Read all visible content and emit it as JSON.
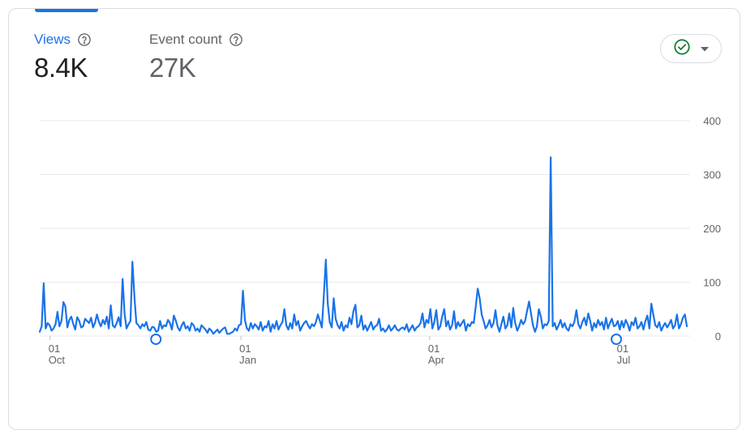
{
  "metrics": [
    {
      "label": "Views",
      "value": "8.4K",
      "help_icon": "help-circle-icon"
    },
    {
      "label": "Event count",
      "value": "27K",
      "help_icon": "help-circle-icon"
    }
  ],
  "status_chip": {
    "icon": "check-circle-icon",
    "dropdown_icon": "caret-down-icon"
  },
  "colors": {
    "accent": "#1a73e8",
    "check_green": "#188038",
    "grid": "#e8eaed",
    "text_muted": "#5f6368"
  },
  "chart_data": {
    "type": "line",
    "x_start": "2023-09-26",
    "x_end": "2024-08-03",
    "x_ticks": [
      {
        "date": "2023-10-01",
        "day": "01",
        "month": "Oct"
      },
      {
        "date": "2024-01-01",
        "day": "01",
        "month": "Jan"
      },
      {
        "date": "2024-04-01",
        "day": "01",
        "month": "Apr"
      },
      {
        "date": "2024-07-01",
        "day": "01",
        "month": "Jul"
      }
    ],
    "y_ticks": [
      0,
      100,
      200,
      300,
      400
    ],
    "ylim": [
      0,
      400
    ],
    "y_axis_position": "right",
    "grid": true,
    "series": [
      {
        "values": [
          8,
          18,
          98,
          14,
          24,
          20,
          10,
          14,
          22,
          45,
          18,
          28,
          63,
          55,
          16,
          30,
          36,
          22,
          12,
          35,
          28,
          16,
          18,
          32,
          28,
          24,
          34,
          16,
          24,
          40,
          26,
          18,
          30,
          22,
          36,
          14,
          57,
          20,
          16,
          24,
          35,
          18,
          106,
          42,
          14,
          22,
          28,
          138,
          72,
          24,
          20,
          14,
          22,
          18,
          26,
          12,
          10,
          17,
          16,
          8,
          10,
          28,
          14,
          20,
          18,
          30,
          24,
          12,
          38,
          28,
          16,
          10,
          20,
          26,
          14,
          18,
          10,
          24,
          20,
          10,
          14,
          8,
          20,
          16,
          12,
          6,
          14,
          10,
          4,
          8,
          12,
          6,
          10,
          14,
          16,
          4,
          4,
          6,
          8,
          14,
          10,
          20,
          22,
          84,
          30,
          14,
          10,
          24,
          14,
          22,
          18,
          12,
          26,
          10,
          18,
          16,
          28,
          8,
          22,
          14,
          28,
          12,
          20,
          26,
          50,
          20,
          12,
          24,
          14,
          40,
          20,
          28,
          10,
          18,
          24,
          28,
          20,
          14,
          22,
          18,
          26,
          40,
          28,
          16,
          74,
          142,
          60,
          26,
          16,
          70,
          32,
          20,
          14,
          26,
          10,
          20,
          16,
          34,
          22,
          46,
          58,
          16,
          20,
          38,
          12,
          20,
          10,
          18,
          26,
          12,
          18,
          20,
          32,
          10,
          14,
          8,
          12,
          20,
          10,
          14,
          20,
          12,
          10,
          14,
          16,
          12,
          22,
          8,
          14,
          20,
          10,
          16,
          18,
          24,
          42,
          16,
          30,
          24,
          50,
          14,
          26,
          48,
          12,
          18,
          36,
          50,
          18,
          28,
          12,
          20,
          46,
          14,
          26,
          18,
          24,
          30,
          10,
          22,
          18,
          26,
          24,
          55,
          88,
          70,
          40,
          28,
          14,
          20,
          30,
          16,
          24,
          48,
          20,
          8,
          22,
          36,
          14,
          20,
          42,
          16,
          52,
          24,
          10,
          18,
          30,
          22,
          28,
          46,
          64,
          42,
          20,
          8,
          18,
          50,
          36,
          14,
          22,
          20,
          28,
          332,
          18,
          24,
          12,
          20,
          30,
          16,
          24,
          14,
          10,
          22,
          18,
          26,
          48,
          22,
          14,
          26,
          34,
          20,
          42,
          28,
          10,
          24,
          16,
          30,
          20,
          26,
          12,
          34,
          14,
          24,
          32,
          18,
          20,
          28,
          12,
          28,
          16,
          30,
          22,
          10,
          26,
          20,
          34,
          14,
          18,
          26,
          12,
          28,
          38,
          14,
          60,
          40,
          20,
          16,
          26,
          10,
          18,
          24,
          16,
          22,
          30,
          14,
          20,
          40,
          14,
          22,
          34,
          40,
          18
        ]
      }
    ],
    "markers": [
      {
        "date": "2023-11-21",
        "value": 0
      },
      {
        "date": "2024-06-30",
        "value": 0
      }
    ]
  }
}
